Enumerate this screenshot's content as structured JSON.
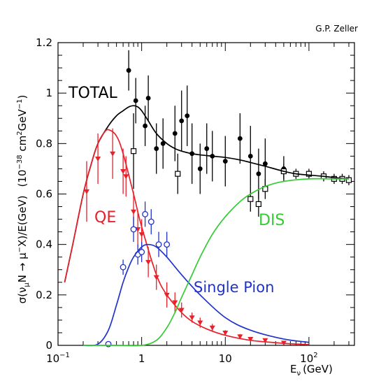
{
  "chart_data": {
    "type": "line",
    "credit": "G.P. Zeller",
    "xlabel": "E_ν (GeV)",
    "xlabel_main": "E",
    "xlabel_sub": "ν",
    "xlabel_unit": "(GeV)",
    "ylabel": "σ(ν_μN → μ⁻X)/E(GeV)  (10⁻³⁸ cm²GeV⁻¹)",
    "ylabel_sigma": "σ(",
    "ylabel_nu": "ν",
    "ylabel_mu_sub": "μ",
    "ylabel_n": "N → ",
    "ylabel_mu": "μ",
    "ylabel_mu_sup": "−",
    "ylabel_x": "X)/E(GeV)",
    "ylabel_units_open": "(10",
    "ylabel_exp1": "−38",
    "ylabel_units_mid": " cm",
    "ylabel_exp2": "2",
    "ylabel_units_mid2": "GeV",
    "ylabel_exp3": "−1",
    "ylabel_units_close": ")",
    "xscale": "log",
    "xlim": [
      0.1,
      350
    ],
    "ylim": [
      0,
      1.2
    ],
    "x_ticks": [
      {
        "value": 0.1,
        "base": "10",
        "exp": "−1"
      },
      {
        "value": 1,
        "label": "1"
      },
      {
        "value": 10,
        "label": "10"
      },
      {
        "value": 100,
        "base": "10",
        "exp": "2"
      }
    ],
    "y_ticks": [
      "0",
      "0.2",
      "0.4",
      "0.6",
      "0.8",
      "1",
      "1.2"
    ],
    "annotations": {
      "total": "TOTAL",
      "qe": "QE",
      "dis": "DIS",
      "single_pion": "Single Pion"
    },
    "colors": {
      "total": "#000000",
      "qe": "#e8202a",
      "dis": "#33cc33",
      "single_pion": "#1f33cc"
    },
    "series": [
      {
        "name": "TOTAL",
        "x": [
          0.12,
          0.15,
          0.2,
          0.25,
          0.3,
          0.4,
          0.5,
          0.6,
          0.7,
          0.8,
          0.9,
          1,
          1.2,
          1.5,
          2,
          2.5,
          3,
          4,
          5,
          7,
          10,
          15,
          20,
          30,
          50,
          70,
          100,
          150,
          200,
          300
        ],
        "y": [
          0.25,
          0.4,
          0.6,
          0.72,
          0.8,
          0.87,
          0.91,
          0.93,
          0.945,
          0.95,
          0.945,
          0.93,
          0.89,
          0.84,
          0.8,
          0.78,
          0.77,
          0.76,
          0.755,
          0.75,
          0.745,
          0.735,
          0.725,
          0.71,
          0.69,
          0.68,
          0.675,
          0.67,
          0.665,
          0.66
        ]
      },
      {
        "name": "QE",
        "x": [
          0.12,
          0.15,
          0.2,
          0.25,
          0.3,
          0.35,
          0.4,
          0.5,
          0.6,
          0.8,
          1,
          1.5,
          2,
          3,
          4,
          6,
          10,
          20,
          50,
          100
        ],
        "y": [
          0.25,
          0.4,
          0.6,
          0.72,
          0.8,
          0.84,
          0.855,
          0.83,
          0.76,
          0.6,
          0.47,
          0.28,
          0.2,
          0.13,
          0.095,
          0.065,
          0.04,
          0.02,
          0.008,
          0.003
        ]
      },
      {
        "name": "Single Pion",
        "x": [
          0.2,
          0.3,
          0.4,
          0.5,
          0.6,
          0.7,
          0.8,
          1,
          1.2,
          1.5,
          2,
          3,
          5,
          10,
          20,
          50,
          100
        ],
        "y": [
          0,
          0.005,
          0.06,
          0.16,
          0.25,
          0.31,
          0.35,
          0.39,
          0.4,
          0.39,
          0.35,
          0.28,
          0.2,
          0.11,
          0.06,
          0.025,
          0.012
        ]
      },
      {
        "name": "DIS",
        "x": [
          0.2,
          0.5,
          1,
          1.5,
          2,
          2.5,
          3,
          4,
          5,
          7,
          10,
          15,
          20,
          30,
          50,
          100,
          200,
          300
        ],
        "y": [
          0,
          0,
          0,
          0.02,
          0.07,
          0.13,
          0.19,
          0.28,
          0.35,
          0.44,
          0.51,
          0.57,
          0.6,
          0.63,
          0.65,
          0.66,
          0.66,
          0.66
        ]
      }
    ],
    "data_points": {
      "total": [
        {
          "x": 0.7,
          "y": 1.09,
          "err": 0.08
        },
        {
          "x": 0.85,
          "y": 0.97,
          "err": 0.09
        },
        {
          "x": 1.2,
          "y": 0.98,
          "err": 0.09
        },
        {
          "x": 1.1,
          "y": 0.87,
          "err": 0.08
        },
        {
          "x": 1.5,
          "y": 0.78,
          "err": 0.1
        },
        {
          "x": 1.8,
          "y": 0.8,
          "err": 0.1
        },
        {
          "x": 2.5,
          "y": 0.84,
          "err": 0.11
        },
        {
          "x": 3,
          "y": 0.89,
          "err": 0.12
        },
        {
          "x": 3.5,
          "y": 0.91,
          "err": 0.12
        },
        {
          "x": 4,
          "y": 0.76,
          "err": 0.12
        },
        {
          "x": 5,
          "y": 0.7,
          "err": 0.1
        },
        {
          "x": 6,
          "y": 0.78,
          "err": 0.1
        },
        {
          "x": 7,
          "y": 0.75,
          "err": 0.1
        },
        {
          "x": 10,
          "y": 0.73,
          "err": 0.1
        },
        {
          "x": 15,
          "y": 0.82,
          "err": 0.1
        },
        {
          "x": 20,
          "y": 0.75,
          "err": 0.12
        },
        {
          "x": 25,
          "y": 0.68,
          "err": 0.1
        },
        {
          "x": 30,
          "y": 0.72,
          "err": 0.1
        },
        {
          "x": 50,
          "y": 0.7,
          "err": 0.05
        }
      ],
      "total_open": [
        {
          "x": 0.8,
          "y": 0.77,
          "err": 0.15
        },
        {
          "x": 2.7,
          "y": 0.68,
          "err": 0.08
        },
        {
          "x": 20,
          "y": 0.58,
          "err": 0.05
        },
        {
          "x": 25,
          "y": 0.56,
          "err": 0.05
        },
        {
          "x": 30,
          "y": 0.62,
          "err": 0.04
        },
        {
          "x": 50,
          "y": 0.69,
          "err": 0.03
        },
        {
          "x": 70,
          "y": 0.68,
          "err": 0.02
        },
        {
          "x": 100,
          "y": 0.68,
          "err": 0.02
        },
        {
          "x": 150,
          "y": 0.67,
          "err": 0.02
        },
        {
          "x": 200,
          "y": 0.66,
          "err": 0.02
        },
        {
          "x": 250,
          "y": 0.66,
          "err": 0.02
        },
        {
          "x": 300,
          "y": 0.655,
          "err": 0.02
        }
      ],
      "qe": [
        {
          "x": 0.22,
          "y": 0.61,
          "err": 0.12
        },
        {
          "x": 0.3,
          "y": 0.74,
          "err": 0.1
        },
        {
          "x": 0.45,
          "y": 0.76,
          "err": 0.1
        },
        {
          "x": 0.6,
          "y": 0.69,
          "err": 0.09
        },
        {
          "x": 0.65,
          "y": 0.67,
          "err": 0.08
        },
        {
          "x": 0.8,
          "y": 0.53,
          "err": 0.08
        },
        {
          "x": 0.9,
          "y": 0.46,
          "err": 0.07
        },
        {
          "x": 1,
          "y": 0.44,
          "err": 0.06
        },
        {
          "x": 1.2,
          "y": 0.33,
          "err": 0.06
        },
        {
          "x": 1.5,
          "y": 0.27,
          "err": 0.05
        },
        {
          "x": 2,
          "y": 0.2,
          "err": 0.05
        },
        {
          "x": 2.5,
          "y": 0.17,
          "err": 0.04
        },
        {
          "x": 3,
          "y": 0.14,
          "err": 0.03
        },
        {
          "x": 4,
          "y": 0.11,
          "err": 0.02
        },
        {
          "x": 5,
          "y": 0.09,
          "err": 0.02
        },
        {
          "x": 7,
          "y": 0.07,
          "err": 0.015
        },
        {
          "x": 10,
          "y": 0.05,
          "err": 0.01
        },
        {
          "x": 15,
          "y": 0.035,
          "err": 0.01
        },
        {
          "x": 20,
          "y": 0.025,
          "err": 0.008
        },
        {
          "x": 30,
          "y": 0.02,
          "err": 0.005
        },
        {
          "x": 50,
          "y": 0.01,
          "err": 0.005
        }
      ],
      "single_pion": [
        {
          "x": 0.6,
          "y": 0.31,
          "err": 0.03
        },
        {
          "x": 0.8,
          "y": 0.46,
          "err": 0.05
        },
        {
          "x": 0.9,
          "y": 0.36,
          "err": 0.04
        },
        {
          "x": 1,
          "y": 0.37,
          "err": 0.04
        },
        {
          "x": 1.1,
          "y": 0.52,
          "err": 0.05
        },
        {
          "x": 1.3,
          "y": 0.49,
          "err": 0.05
        },
        {
          "x": 1.6,
          "y": 0.4,
          "err": 0.05
        },
        {
          "x": 2,
          "y": 0.4,
          "err": 0.05
        },
        {
          "x": 0.4,
          "y": 0.005,
          "err": 0
        }
      ]
    }
  }
}
